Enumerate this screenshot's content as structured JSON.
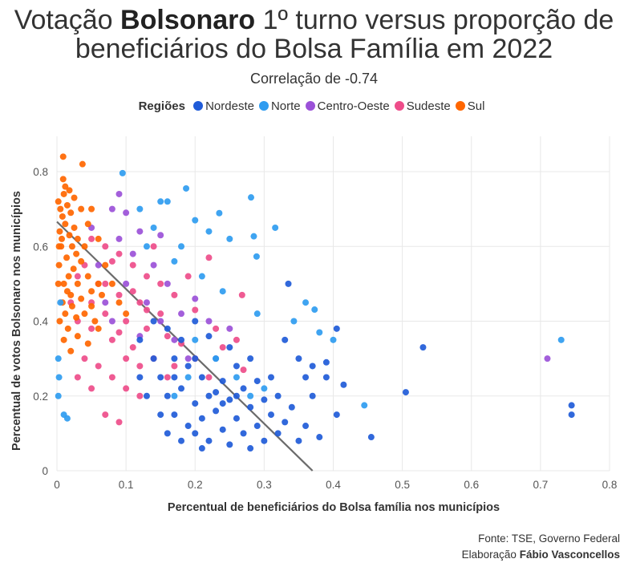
{
  "title": {
    "prefix": "Votação ",
    "bold": "Bolsonaro",
    "suffix": " 1º turno versus proporção de",
    "line2": "beneficiários do Bolsa Família em 2022"
  },
  "subtitle": "Correlação de -0.74",
  "footer": {
    "source": "Fonte: TSE, Governo Federal",
    "credit_prefix": "Elaboração ",
    "credit_name": "Fábio Vasconcellos"
  },
  "chart_data": {
    "type": "scatter",
    "xlabel": "Percentual de beneficiários do Bolsa família nos municípios",
    "ylabel": "Percentual de votos Bolsonaro nos municípios",
    "xlim": [
      0,
      0.8
    ],
    "ylim": [
      0,
      0.8
    ],
    "xticks": [
      "0",
      "0.1",
      "0.2",
      "0.3",
      "0.4",
      "0.5",
      "0.6",
      "0.7",
      "0.8"
    ],
    "yticks": [
      "0",
      "0.2",
      "0.4",
      "0.6",
      "0.8"
    ],
    "grid": true,
    "legend": {
      "title": "Regiões",
      "placement": "top"
    },
    "trendline": {
      "intercept": 0.666,
      "slope": -1.8
    },
    "series": [
      {
        "name": "Nordeste",
        "color": "#1f5bd8",
        "points": [
          [
            0.12,
            0.25
          ],
          [
            0.13,
            0.2
          ],
          [
            0.14,
            0.3
          ],
          [
            0.15,
            0.15
          ],
          [
            0.15,
            0.25
          ],
          [
            0.16,
            0.1
          ],
          [
            0.16,
            0.2
          ],
          [
            0.17,
            0.3
          ],
          [
            0.17,
            0.15
          ],
          [
            0.18,
            0.08
          ],
          [
            0.18,
            0.22
          ],
          [
            0.19,
            0.12
          ],
          [
            0.19,
            0.28
          ],
          [
            0.2,
            0.18
          ],
          [
            0.2,
            0.1
          ],
          [
            0.21,
            0.25
          ],
          [
            0.21,
            0.14
          ],
          [
            0.22,
            0.2
          ],
          [
            0.22,
            0.08
          ],
          [
            0.23,
            0.3
          ],
          [
            0.23,
            0.16
          ],
          [
            0.24,
            0.11
          ],
          [
            0.24,
            0.24
          ],
          [
            0.25,
            0.19
          ],
          [
            0.25,
            0.07
          ],
          [
            0.26,
            0.14
          ],
          [
            0.26,
            0.28
          ],
          [
            0.27,
            0.22
          ],
          [
            0.27,
            0.1
          ],
          [
            0.28,
            0.17
          ],
          [
            0.28,
            0.06
          ],
          [
            0.29,
            0.24
          ],
          [
            0.29,
            0.12
          ],
          [
            0.3,
            0.19
          ],
          [
            0.3,
            0.08
          ],
          [
            0.31,
            0.15
          ],
          [
            0.31,
            0.25
          ],
          [
            0.32,
            0.1
          ],
          [
            0.32,
            0.2
          ],
          [
            0.33,
            0.13
          ],
          [
            0.34,
            0.17
          ],
          [
            0.35,
            0.08
          ],
          [
            0.36,
            0.12
          ],
          [
            0.37,
            0.2
          ],
          [
            0.36,
            0.25
          ],
          [
            0.18,
            0.35
          ],
          [
            0.2,
            0.4
          ],
          [
            0.22,
            0.36
          ],
          [
            0.25,
            0.33
          ],
          [
            0.28,
            0.3
          ],
          [
            0.14,
            0.4
          ],
          [
            0.16,
            0.38
          ],
          [
            0.12,
            0.35
          ],
          [
            0.21,
            0.06
          ],
          [
            0.23,
            0.21
          ],
          [
            0.17,
            0.25
          ],
          [
            0.2,
            0.3
          ],
          [
            0.24,
            0.18
          ],
          [
            0.26,
            0.2
          ],
          [
            0.53,
            0.33
          ],
          [
            0.505,
            0.21
          ],
          [
            0.455,
            0.09
          ],
          [
            0.745,
            0.175
          ],
          [
            0.745,
            0.15
          ],
          [
            0.405,
            0.38
          ],
          [
            0.415,
            0.23
          ],
          [
            0.39,
            0.29
          ],
          [
            0.39,
            0.25
          ],
          [
            0.405,
            0.15
          ],
          [
            0.38,
            0.09
          ],
          [
            0.335,
            0.5
          ],
          [
            0.37,
            0.28
          ],
          [
            0.35,
            0.3
          ],
          [
            0.33,
            0.35
          ]
        ]
      },
      {
        "name": "Norte",
        "color": "#2f9cf0",
        "points": [
          [
            0.73,
            0.35
          ],
          [
            0.445,
            0.175
          ],
          [
            0.281,
            0.731
          ],
          [
            0.316,
            0.65
          ],
          [
            0.187,
            0.755
          ],
          [
            0.095,
            0.796
          ],
          [
            0.235,
            0.689
          ],
          [
            0.373,
            0.431
          ],
          [
            0.289,
            0.573
          ],
          [
            0.285,
            0.627
          ],
          [
            0.15,
            0.72
          ],
          [
            0.16,
            0.72
          ],
          [
            0.12,
            0.7
          ],
          [
            0.2,
            0.67
          ],
          [
            0.22,
            0.64
          ],
          [
            0.25,
            0.62
          ],
          [
            0.21,
            0.52
          ],
          [
            0.24,
            0.48
          ],
          [
            0.18,
            0.6
          ],
          [
            0.14,
            0.65
          ],
          [
            0.13,
            0.6
          ],
          [
            0.17,
            0.56
          ],
          [
            0.2,
            0.35
          ],
          [
            0.23,
            0.3
          ],
          [
            0.26,
            0.25
          ],
          [
            0.28,
            0.2
          ],
          [
            0.3,
            0.22
          ],
          [
            0.19,
            0.25
          ],
          [
            0.17,
            0.2
          ],
          [
            0.002,
            0.3
          ],
          [
            0.003,
            0.25
          ],
          [
            0.002,
            0.2
          ],
          [
            0.01,
            0.15
          ],
          [
            0.015,
            0.14
          ],
          [
            0.005,
            0.45
          ],
          [
            0.343,
            0.4
          ],
          [
            0.36,
            0.45
          ],
          [
            0.4,
            0.35
          ],
          [
            0.38,
            0.37
          ],
          [
            0.29,
            0.42
          ]
        ]
      },
      {
        "name": "Centro-Oeste",
        "color": "#9b51d8",
        "points": [
          [
            0.08,
            0.7
          ],
          [
            0.09,
            0.74
          ],
          [
            0.1,
            0.69
          ],
          [
            0.12,
            0.64
          ],
          [
            0.11,
            0.58
          ],
          [
            0.14,
            0.55
          ],
          [
            0.16,
            0.5
          ],
          [
            0.13,
            0.45
          ],
          [
            0.15,
            0.4
          ],
          [
            0.18,
            0.42
          ],
          [
            0.1,
            0.5
          ],
          [
            0.08,
            0.4
          ],
          [
            0.06,
            0.55
          ],
          [
            0.12,
            0.36
          ],
          [
            0.17,
            0.35
          ],
          [
            0.2,
            0.46
          ],
          [
            0.22,
            0.4
          ],
          [
            0.19,
            0.3
          ],
          [
            0.07,
            0.45
          ],
          [
            0.09,
            0.62
          ],
          [
            0.71,
            0.3
          ],
          [
            0.15,
            0.63
          ],
          [
            0.05,
            0.65
          ],
          [
            0.25,
            0.38
          ]
        ]
      },
      {
        "name": "Sudeste",
        "color": "#ee4d8a",
        "points": [
          [
            0.02,
            0.45
          ],
          [
            0.03,
            0.4
          ],
          [
            0.04,
            0.55
          ],
          [
            0.05,
            0.38
          ],
          [
            0.06,
            0.5
          ],
          [
            0.07,
            0.42
          ],
          [
            0.08,
            0.35
          ],
          [
            0.09,
            0.47
          ],
          [
            0.1,
            0.4
          ],
          [
            0.11,
            0.33
          ],
          [
            0.12,
            0.45
          ],
          [
            0.13,
            0.38
          ],
          [
            0.14,
            0.3
          ],
          [
            0.15,
            0.42
          ],
          [
            0.16,
            0.36
          ],
          [
            0.17,
            0.28
          ],
          [
            0.18,
            0.34
          ],
          [
            0.2,
            0.3
          ],
          [
            0.22,
            0.25
          ],
          [
            0.19,
            0.52
          ],
          [
            0.05,
            0.62
          ],
          [
            0.07,
            0.6
          ],
          [
            0.09,
            0.58
          ],
          [
            0.11,
            0.55
          ],
          [
            0.13,
            0.52
          ],
          [
            0.15,
            0.5
          ],
          [
            0.04,
            0.3
          ],
          [
            0.06,
            0.28
          ],
          [
            0.08,
            0.25
          ],
          [
            0.1,
            0.22
          ],
          [
            0.12,
            0.2
          ],
          [
            0.07,
            0.15
          ],
          [
            0.09,
            0.13
          ],
          [
            0.05,
            0.22
          ],
          [
            0.03,
            0.25
          ],
          [
            0.14,
            0.6
          ],
          [
            0.17,
            0.47
          ],
          [
            0.2,
            0.43
          ],
          [
            0.24,
            0.33
          ],
          [
            0.26,
            0.35
          ],
          [
            0.1,
            0.3
          ],
          [
            0.12,
            0.28
          ],
          [
            0.16,
            0.25
          ],
          [
            0.05,
            0.45
          ],
          [
            0.07,
            0.5
          ],
          [
            0.09,
            0.37
          ],
          [
            0.11,
            0.48
          ],
          [
            0.03,
            0.52
          ],
          [
            0.08,
            0.56
          ],
          [
            0.13,
            0.43
          ],
          [
            0.27,
            0.27
          ],
          [
            0.23,
            0.38
          ],
          [
            0.22,
            0.57
          ],
          [
            0.268,
            0.47
          ]
        ]
      },
      {
        "name": "Sul",
        "color": "#ff6600",
        "points": [
          [
            0.002,
            0.72
          ],
          [
            0.005,
            0.7
          ],
          [
            0.008,
            0.68
          ],
          [
            0.01,
            0.74
          ],
          [
            0.012,
            0.66
          ],
          [
            0.015,
            0.71
          ],
          [
            0.018,
            0.63
          ],
          [
            0.02,
            0.69
          ],
          [
            0.022,
            0.6
          ],
          [
            0.025,
            0.65
          ],
          [
            0.028,
            0.58
          ],
          [
            0.03,
            0.62
          ],
          [
            0.003,
            0.55
          ],
          [
            0.006,
            0.6
          ],
          [
            0.01,
            0.5
          ],
          [
            0.014,
            0.57
          ],
          [
            0.017,
            0.52
          ],
          [
            0.02,
            0.47
          ],
          [
            0.024,
            0.54
          ],
          [
            0.03,
            0.5
          ],
          [
            0.035,
            0.56
          ],
          [
            0.04,
            0.6
          ],
          [
            0.045,
            0.52
          ],
          [
            0.05,
            0.48
          ],
          [
            0.008,
            0.45
          ],
          [
            0.012,
            0.42
          ],
          [
            0.016,
            0.38
          ],
          [
            0.022,
            0.44
          ],
          [
            0.028,
            0.41
          ],
          [
            0.035,
            0.46
          ],
          [
            0.04,
            0.42
          ],
          [
            0.05,
            0.44
          ],
          [
            0.055,
            0.4
          ],
          [
            0.06,
            0.5
          ],
          [
            0.065,
            0.47
          ],
          [
            0.004,
            0.64
          ],
          [
            0.009,
            0.78
          ],
          [
            0.012,
            0.76
          ],
          [
            0.018,
            0.75
          ],
          [
            0.009,
            0.84
          ],
          [
            0.037,
            0.82
          ],
          [
            0.025,
            0.73
          ],
          [
            0.045,
            0.66
          ],
          [
            0.05,
            0.7
          ],
          [
            0.06,
            0.62
          ],
          [
            0.07,
            0.55
          ],
          [
            0.08,
            0.5
          ],
          [
            0.09,
            0.45
          ],
          [
            0.1,
            0.42
          ],
          [
            0.004,
            0.4
          ],
          [
            0.01,
            0.35
          ],
          [
            0.02,
            0.32
          ],
          [
            0.03,
            0.36
          ],
          [
            0.045,
            0.34
          ],
          [
            0.06,
            0.38
          ],
          [
            0.015,
            0.48
          ],
          [
            0.035,
            0.7
          ],
          [
            0.002,
            0.5
          ],
          [
            0.003,
            0.6
          ],
          [
            0.007,
            0.62
          ]
        ]
      }
    ]
  }
}
